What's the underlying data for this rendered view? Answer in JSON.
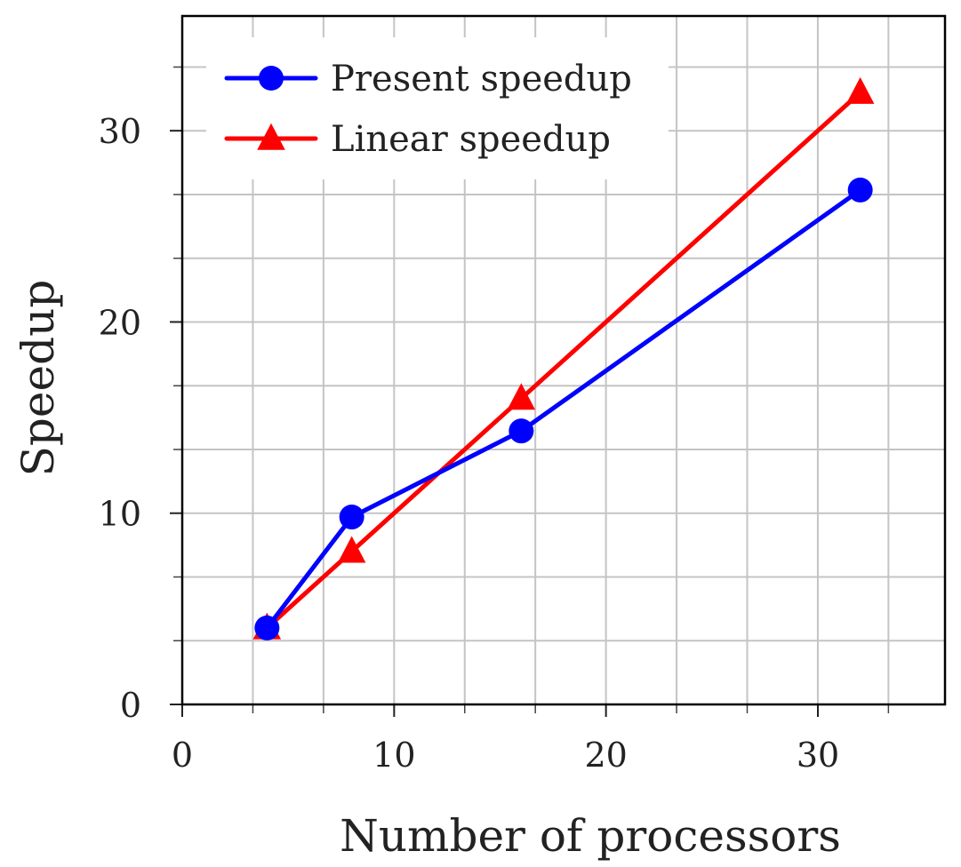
{
  "chart_data": {
    "type": "line",
    "xlabel": "Number of processors",
    "ylabel": "Speedup",
    "xlim": [
      0,
      36
    ],
    "ylim": [
      0,
      36
    ],
    "xticks": [
      0,
      10,
      20,
      30
    ],
    "yticks": [
      0,
      10,
      20,
      30
    ],
    "x_minor_step": 3.333,
    "y_minor_step": 3.333,
    "grid": true,
    "legend_position": "top-left",
    "series": [
      {
        "name": "Present speedup",
        "color": "#0000ff",
        "marker": "circle",
        "x": [
          4,
          8,
          16,
          32
        ],
        "y": [
          4.0,
          9.8,
          14.3,
          26.9
        ]
      },
      {
        "name": "Linear speedup",
        "color": "#ff0000",
        "marker": "triangle",
        "x": [
          4,
          8,
          16,
          32
        ],
        "y": [
          4,
          8,
          16,
          32
        ]
      }
    ]
  }
}
